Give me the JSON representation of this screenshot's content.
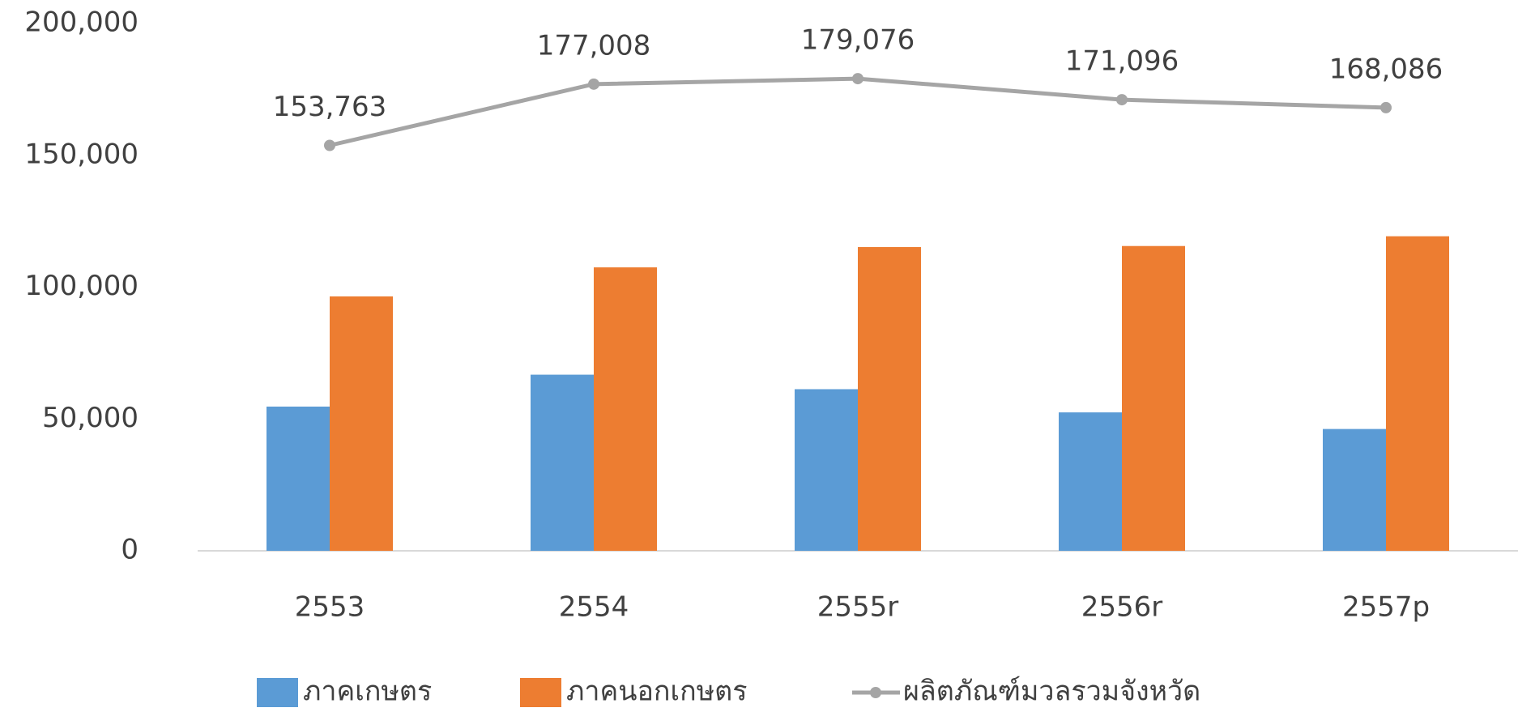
{
  "chart_data": {
    "type": "bar",
    "categories": [
      "2553",
      "2554",
      "2555r",
      "2556r",
      "2557p"
    ],
    "series": [
      {
        "name": "ภาคเกษตร",
        "color": "#5b9bd5",
        "values": [
          54700,
          66800,
          61300,
          52500,
          46200
        ]
      },
      {
        "name": "ภาคนอกเกษตร",
        "color": "#ed7d31",
        "values": [
          96500,
          107500,
          115200,
          115600,
          119300
        ]
      },
      {
        "name": "ผลิตภัณฑ์มวลรวมจังหวัด",
        "color": "#a5a5a5",
        "type": "line",
        "values": [
          153763,
          177008,
          179076,
          171096,
          168086
        ],
        "value_labels": [
          "153,763",
          "177,008",
          "179,076",
          "171,096",
          "168,086"
        ]
      }
    ],
    "ylim": [
      0,
      200000
    ],
    "yticks": [
      0,
      {
        "value": 50000,
        "label": "50,000"
      },
      {
        "value": 100000,
        "label": "100,000"
      },
      {
        "value": 150000,
        "label": "150,000"
      },
      {
        "value": 200000,
        "label": "200,000"
      }
    ],
    "grid": false,
    "legend": "bottom"
  }
}
